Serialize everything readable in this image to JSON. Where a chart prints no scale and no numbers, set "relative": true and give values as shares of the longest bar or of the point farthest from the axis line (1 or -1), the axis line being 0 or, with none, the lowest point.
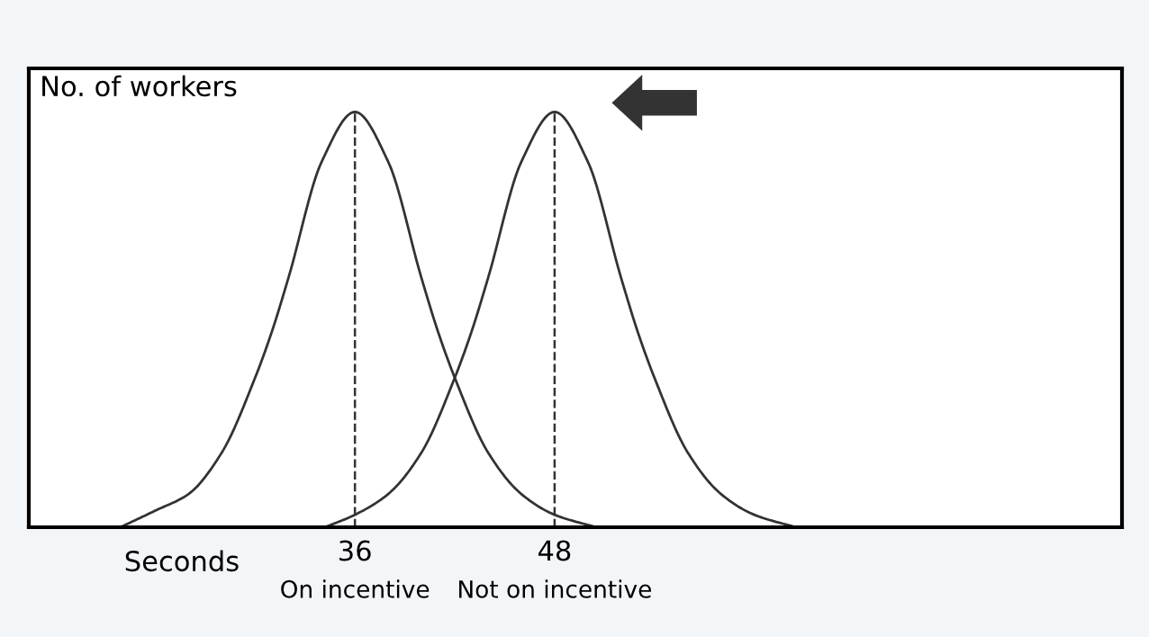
{
  "chart_data": {
    "type": "line",
    "relative": true,
    "xlabel": "Seconds",
    "ylabel": "No. of workers",
    "xlim": [
      16.4,
      82.1
    ],
    "xticks": [
      36,
      48
    ],
    "grid": false,
    "legend": false,
    "marker": "none",
    "line_style": "solid",
    "series": [
      {
        "x": [
          21.9,
          24,
          26,
          28,
          30,
          31,
          32,
          34,
          36,
          38,
          40,
          41,
          42,
          44,
          46,
          48,
          50.5
        ],
        "values": [
          0,
          0.04,
          0.08,
          0.18,
          0.36,
          0.47,
          0.6,
          0.88,
          1,
          0.88,
          0.6,
          0.47,
          0.36,
          0.18,
          0.08,
          0.03,
          0
        ],
        "color": "#333333"
      },
      {
        "x": [
          34.2,
          36,
          38,
          40,
          42,
          43,
          44,
          46,
          48,
          50,
          52,
          53,
          54,
          56,
          58,
          60,
          62.5
        ],
        "values": [
          0,
          0.03,
          0.08,
          0.18,
          0.36,
          0.47,
          0.6,
          0.88,
          1,
          0.88,
          0.6,
          0.47,
          0.36,
          0.18,
          0.08,
          0.03,
          0
        ],
        "color": "#333333"
      }
    ],
    "ref_lines": [
      {
        "axis": "x",
        "value": 36,
        "color": "#333333",
        "line_style": "dashed"
      },
      {
        "axis": "x",
        "value": 48,
        "color": "#333333",
        "line_style": "dashed"
      }
    ],
    "annotations": [
      {
        "text": "On incentive",
        "x": 36,
        "y": 0
      },
      {
        "text": "Not on incentive",
        "x": 48,
        "y": 0
      }
    ]
  }
}
